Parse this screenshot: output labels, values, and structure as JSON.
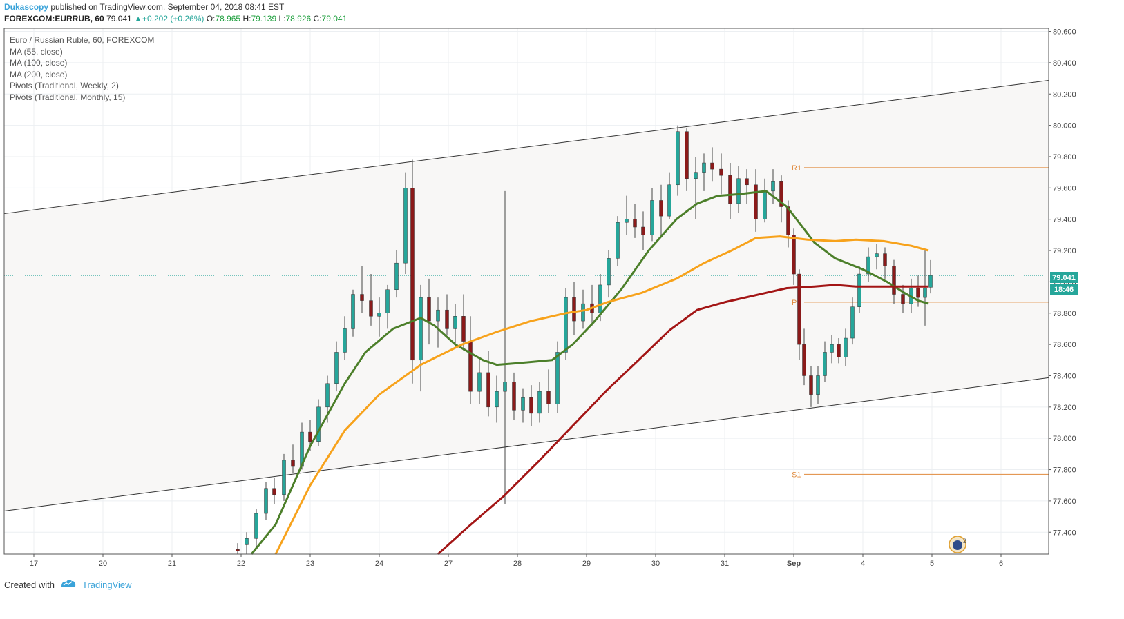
{
  "header": {
    "author": "Dukascopy",
    "published_text": "published on TradingView.com, September 04, 2018 08:41 EST",
    "symbol": "FOREXCOM:EURRUB, 60",
    "last": "79.041",
    "change": "+0.202 (+0.26%)",
    "o_label": "O:",
    "o_value": "78.965",
    "h_label": "H:",
    "h_value": "79.139",
    "l_label": "L:",
    "l_value": "78.926",
    "c_label": "C:",
    "c_value": "79.041"
  },
  "legend": {
    "title": "Euro / Russian Ruble, 60, FOREXCOM",
    "items": [
      "MA (55, close)",
      "MA (100, close)",
      "MA (200, close)",
      "Pivots (Traditional, Weekly, 2)",
      "Pivots (Traditional, Monthly, 15)"
    ]
  },
  "price_tag": {
    "price": "79.041",
    "countdown": "18:46"
  },
  "footer": {
    "created_with": "Created with",
    "brand": "TradingView"
  },
  "colors": {
    "up": "#26a69a",
    "ma55": "#4c7f2a",
    "ma100": "#f7a21b",
    "ma200": "#a31515",
    "pivot": "#e08a3c",
    "channel_fill": "#f8f7f6",
    "brand": "#3aa3d9"
  },
  "chart_data": {
    "type": "candlestick",
    "x_ticks": [
      "17",
      "20",
      "21",
      "22",
      "23",
      "24",
      "27",
      "28",
      "29",
      "30",
      "31",
      "Sep",
      "4",
      "5",
      "6"
    ],
    "y_ticks": [
      "77.400",
      "77.600",
      "77.800",
      "78.000",
      "78.200",
      "78.400",
      "78.600",
      "78.800",
      "79.000",
      "79.200",
      "79.400",
      "79.600",
      "79.800",
      "80.000",
      "80.200",
      "80.400",
      "80.600"
    ],
    "ylim": [
      77.26,
      80.62
    ],
    "last_price": 79.041,
    "channel": {
      "upper": [
        [
          0,
          79.46
        ],
        [
          15.1,
          80.31
        ]
      ],
      "lower": [
        [
          0,
          77.56
        ],
        [
          15.1,
          78.41
        ]
      ]
    },
    "pivots": [
      {
        "label": "R1",
        "value": 79.73,
        "from": 11.15,
        "to": 15.1
      },
      {
        "label": "P",
        "value": 78.87,
        "from": 11.15,
        "to": 15.1
      },
      {
        "label": "S1",
        "value": 77.77,
        "from": 11.15,
        "to": 15.1
      }
    ],
    "ma_series": [
      {
        "name": "MA (55, close)",
        "points": [
          [
            3.15,
            77.26
          ],
          [
            3.5,
            77.45
          ],
          [
            4.0,
            77.95
          ],
          [
            4.5,
            78.35
          ],
          [
            4.8,
            78.55
          ],
          [
            5.2,
            78.7
          ],
          [
            5.6,
            78.77
          ],
          [
            5.8,
            78.72
          ],
          [
            6.1,
            78.6
          ],
          [
            6.5,
            78.5
          ],
          [
            6.7,
            78.47
          ],
          [
            7.0,
            78.48
          ],
          [
            7.5,
            78.5
          ],
          [
            7.8,
            78.6
          ],
          [
            8.1,
            78.74
          ],
          [
            8.5,
            78.95
          ],
          [
            8.9,
            79.2
          ],
          [
            9.3,
            79.4
          ],
          [
            9.6,
            79.5
          ],
          [
            9.9,
            79.55
          ],
          [
            10.2,
            79.56
          ],
          [
            10.4,
            79.57
          ],
          [
            10.6,
            79.58
          ],
          [
            10.9,
            79.48
          ],
          [
            11.3,
            79.25
          ],
          [
            11.6,
            79.15
          ],
          [
            12.0,
            79.08
          ],
          [
            12.35,
            79.0
          ],
          [
            12.6,
            78.93
          ],
          [
            12.8,
            78.88
          ],
          [
            12.95,
            78.86
          ]
        ]
      },
      {
        "name": "MA (100, close)",
        "points": [
          [
            3.5,
            77.26
          ],
          [
            4.0,
            77.7
          ],
          [
            4.5,
            78.05
          ],
          [
            5.0,
            78.28
          ],
          [
            5.6,
            78.47
          ],
          [
            6.2,
            78.6
          ],
          [
            6.7,
            78.68
          ],
          [
            7.2,
            78.75
          ],
          [
            7.7,
            78.8
          ],
          [
            8.0,
            78.82
          ],
          [
            8.3,
            78.87
          ],
          [
            8.8,
            78.93
          ],
          [
            9.3,
            79.02
          ],
          [
            9.7,
            79.12
          ],
          [
            10.1,
            79.2
          ],
          [
            10.45,
            79.28
          ],
          [
            10.8,
            79.29
          ],
          [
            11.2,
            79.27
          ],
          [
            11.6,
            79.26
          ],
          [
            11.9,
            79.27
          ],
          [
            12.3,
            79.26
          ],
          [
            12.7,
            79.23
          ],
          [
            12.95,
            79.2
          ]
        ]
      },
      {
        "name": "MA (200, close)",
        "points": [
          [
            5.85,
            77.26
          ],
          [
            6.3,
            77.44
          ],
          [
            6.8,
            77.63
          ],
          [
            7.3,
            77.85
          ],
          [
            7.8,
            78.08
          ],
          [
            8.3,
            78.31
          ],
          [
            8.8,
            78.52
          ],
          [
            9.2,
            78.69
          ],
          [
            9.6,
            78.82
          ],
          [
            10.0,
            78.87
          ],
          [
            10.3,
            78.9
          ],
          [
            10.6,
            78.93
          ],
          [
            10.9,
            78.96
          ],
          [
            11.3,
            78.97
          ],
          [
            11.6,
            78.98
          ],
          [
            11.9,
            78.97
          ],
          [
            12.2,
            78.97
          ],
          [
            12.6,
            78.97
          ],
          [
            12.95,
            78.97
          ]
        ]
      }
    ],
    "ohlc": [
      [
        2.95,
        77.29,
        77.33,
        77.26,
        77.28
      ],
      [
        3.08,
        77.32,
        77.4,
        77.26,
        77.36
      ],
      [
        3.22,
        77.36,
        77.55,
        77.3,
        77.52
      ],
      [
        3.36,
        77.52,
        77.72,
        77.48,
        77.68
      ],
      [
        3.48,
        77.68,
        77.75,
        77.58,
        77.64
      ],
      [
        3.62,
        77.64,
        77.9,
        77.6,
        77.86
      ],
      [
        3.75,
        77.86,
        77.96,
        77.78,
        77.82
      ],
      [
        3.88,
        77.82,
        78.1,
        77.8,
        78.04
      ],
      [
        4.0,
        78.04,
        78.12,
        77.92,
        77.98
      ],
      [
        4.12,
        77.98,
        78.25,
        77.95,
        78.2
      ],
      [
        4.25,
        78.2,
        78.4,
        78.1,
        78.35
      ],
      [
        4.38,
        78.35,
        78.62,
        78.3,
        78.55
      ],
      [
        4.5,
        78.55,
        78.78,
        78.5,
        78.7
      ],
      [
        4.62,
        78.7,
        78.95,
        78.65,
        78.92
      ],
      [
        4.75,
        78.92,
        79.1,
        78.8,
        78.88
      ],
      [
        4.88,
        78.88,
        79.05,
        78.72,
        78.78
      ],
      [
        5.0,
        78.78,
        78.9,
        78.65,
        78.8
      ],
      [
        5.12,
        78.8,
        78.98,
        78.7,
        78.95
      ],
      [
        5.25,
        78.95,
        79.2,
        78.9,
        79.12
      ],
      [
        5.38,
        79.12,
        79.7,
        79.05,
        79.6
      ],
      [
        5.48,
        79.6,
        79.78,
        78.35,
        78.5
      ],
      [
        5.6,
        78.5,
        78.98,
        78.3,
        78.9
      ],
      [
        5.72,
        78.9,
        79.02,
        78.6,
        78.75
      ],
      [
        5.85,
        78.75,
        78.9,
        78.58,
        78.82
      ],
      [
        5.98,
        78.82,
        78.92,
        78.66,
        78.7
      ],
      [
        6.1,
        78.7,
        78.86,
        78.58,
        78.78
      ],
      [
        6.22,
        78.78,
        78.92,
        78.56,
        78.62
      ],
      [
        6.32,
        78.62,
        78.78,
        78.22,
        78.3
      ],
      [
        6.45,
        78.3,
        78.5,
        78.22,
        78.42
      ],
      [
        6.58,
        78.42,
        78.56,
        78.14,
        78.2
      ],
      [
        6.7,
        78.2,
        78.4,
        78.1,
        78.3
      ],
      [
        6.82,
        78.3,
        79.58,
        77.58,
        78.36
      ],
      [
        6.95,
        78.36,
        78.42,
        78.12,
        78.18
      ],
      [
        7.08,
        78.18,
        78.32,
        78.1,
        78.26
      ],
      [
        7.2,
        78.26,
        78.34,
        78.08,
        78.16
      ],
      [
        7.32,
        78.16,
        78.36,
        78.1,
        78.3
      ],
      [
        7.45,
        78.3,
        78.44,
        78.16,
        78.22
      ],
      [
        7.58,
        78.22,
        78.62,
        78.16,
        78.55
      ],
      [
        7.7,
        78.55,
        78.96,
        78.5,
        78.9
      ],
      [
        7.82,
        78.9,
        79.0,
        78.66,
        78.75
      ],
      [
        7.95,
        78.75,
        78.95,
        78.7,
        78.86
      ],
      [
        8.08,
        78.86,
        78.98,
        78.72,
        78.8
      ],
      [
        8.2,
        78.8,
        79.05,
        78.75,
        78.98
      ],
      [
        8.32,
        78.98,
        79.2,
        78.9,
        79.15
      ],
      [
        8.45,
        79.15,
        79.42,
        79.1,
        79.38
      ],
      [
        8.58,
        79.38,
        79.55,
        79.3,
        79.4
      ],
      [
        8.7,
        79.4,
        79.5,
        79.28,
        79.35
      ],
      [
        8.82,
        79.35,
        79.45,
        79.2,
        79.3
      ],
      [
        8.95,
        79.3,
        79.6,
        79.26,
        79.52
      ],
      [
        9.08,
        79.52,
        79.62,
        79.3,
        79.42
      ],
      [
        9.2,
        79.42,
        79.7,
        79.4,
        79.62
      ],
      [
        9.32,
        79.62,
        80.0,
        79.55,
        79.96
      ],
      [
        9.45,
        79.96,
        79.98,
        79.58,
        79.66
      ],
      [
        9.58,
        79.66,
        79.8,
        79.4,
        79.7
      ],
      [
        9.7,
        79.7,
        79.82,
        79.58,
        79.76
      ],
      [
        9.82,
        79.76,
        79.86,
        79.64,
        79.72
      ],
      [
        9.95,
        79.72,
        79.82,
        79.56,
        79.68
      ],
      [
        10.08,
        79.68,
        79.76,
        79.4,
        79.5
      ],
      [
        10.2,
        79.5,
        79.74,
        79.44,
        79.66
      ],
      [
        10.32,
        79.66,
        79.72,
        79.5,
        79.62
      ],
      [
        10.45,
        79.62,
        79.72,
        79.32,
        79.4
      ],
      [
        10.58,
        79.4,
        79.66,
        79.38,
        79.58
      ],
      [
        10.7,
        79.58,
        79.72,
        79.5,
        79.64
      ],
      [
        10.82,
        79.64,
        79.68,
        79.38,
        79.48
      ],
      [
        10.92,
        79.48,
        79.52,
        79.22,
        79.3
      ],
      [
        11.0,
        79.3,
        79.34,
        78.98,
        79.05
      ],
      [
        11.08,
        79.05,
        79.08,
        78.5,
        78.6
      ],
      [
        11.15,
        78.6,
        78.7,
        78.34,
        78.4
      ],
      [
        11.25,
        78.4,
        78.46,
        78.2,
        78.28
      ],
      [
        11.35,
        78.28,
        78.46,
        78.22,
        78.4
      ],
      [
        11.45,
        78.4,
        78.62,
        78.36,
        78.55
      ],
      [
        11.55,
        78.55,
        78.66,
        78.48,
        78.6
      ],
      [
        11.65,
        78.6,
        78.64,
        78.48,
        78.52
      ],
      [
        11.75,
        78.52,
        78.7,
        78.46,
        78.64
      ],
      [
        11.85,
        78.64,
        78.9,
        78.6,
        78.84
      ],
      [
        11.95,
        78.84,
        79.1,
        78.8,
        79.05
      ],
      [
        12.08,
        79.05,
        79.22,
        79.0,
        79.16
      ],
      [
        12.2,
        79.16,
        79.24,
        79.08,
        79.18
      ],
      [
        12.32,
        79.18,
        79.22,
        79.02,
        79.1
      ],
      [
        12.45,
        79.1,
        79.14,
        78.86,
        78.92
      ],
      [
        12.58,
        78.92,
        78.98,
        78.8,
        78.86
      ],
      [
        12.7,
        78.86,
        79.02,
        78.8,
        78.96
      ],
      [
        12.8,
        78.96,
        79.04,
        78.84,
        78.9
      ],
      [
        12.9,
        78.9,
        79.2,
        78.72,
        78.96
      ],
      [
        12.98,
        78.965,
        79.139,
        78.926,
        79.041
      ]
    ]
  }
}
